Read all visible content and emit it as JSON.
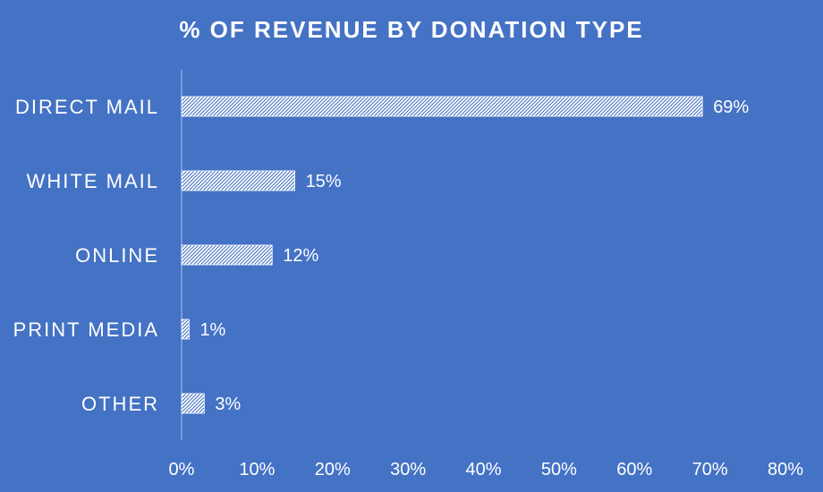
{
  "chart_data": {
    "type": "bar",
    "orientation": "horizontal",
    "title": "% OF REVENUE BY DONATION TYPE",
    "categories": [
      "DIRECT MAIL",
      "WHITE MAIL",
      "ONLINE",
      "PRINT MEDIA",
      "OTHER"
    ],
    "values": [
      69,
      15,
      12,
      1,
      3
    ],
    "data_labels": [
      "69%",
      "15%",
      "12%",
      "1%",
      "3%"
    ],
    "xlim": [
      0,
      80
    ],
    "x_ticks": [
      0,
      10,
      20,
      30,
      40,
      50,
      60,
      70,
      80
    ],
    "x_tick_labels": [
      "0%",
      "10%",
      "20%",
      "30%",
      "40%",
      "50%",
      "60%",
      "70%",
      "80%"
    ],
    "grid": false,
    "legend": "none",
    "colors": {
      "background": "#4472C4",
      "bar_pattern_fg": "#FFFFFF",
      "bar_pattern_bg": "#4472C4",
      "text": "#FFFFFF",
      "axis_line": "#A9C4EB"
    }
  }
}
